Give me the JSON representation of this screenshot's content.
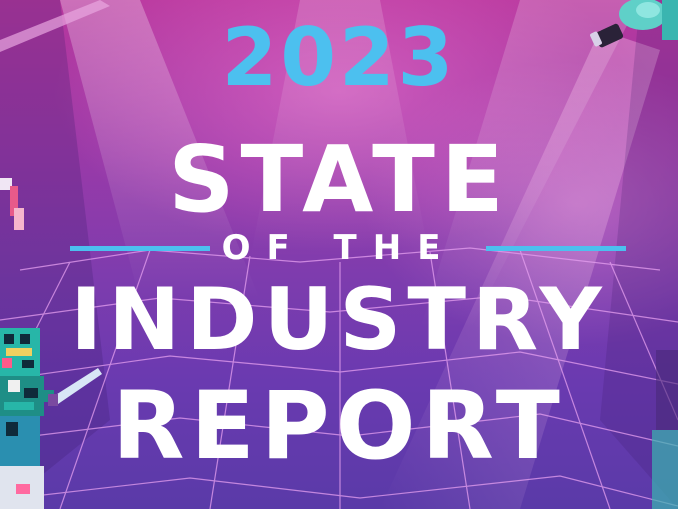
{
  "cover": {
    "year": "2023",
    "line1": "STATE",
    "line2": "OF THE",
    "line3": "INDUSTRY",
    "line4": "REPORT"
  },
  "colors": {
    "accent": "#4cc0ef",
    "title": "#ffffff",
    "background_top": "#b8389e",
    "background_bottom": "#5a3aa8"
  },
  "decorations": [
    "pixel-robot-character",
    "spotlight-icon",
    "pixel-sword-icon",
    "floor-grid"
  ]
}
